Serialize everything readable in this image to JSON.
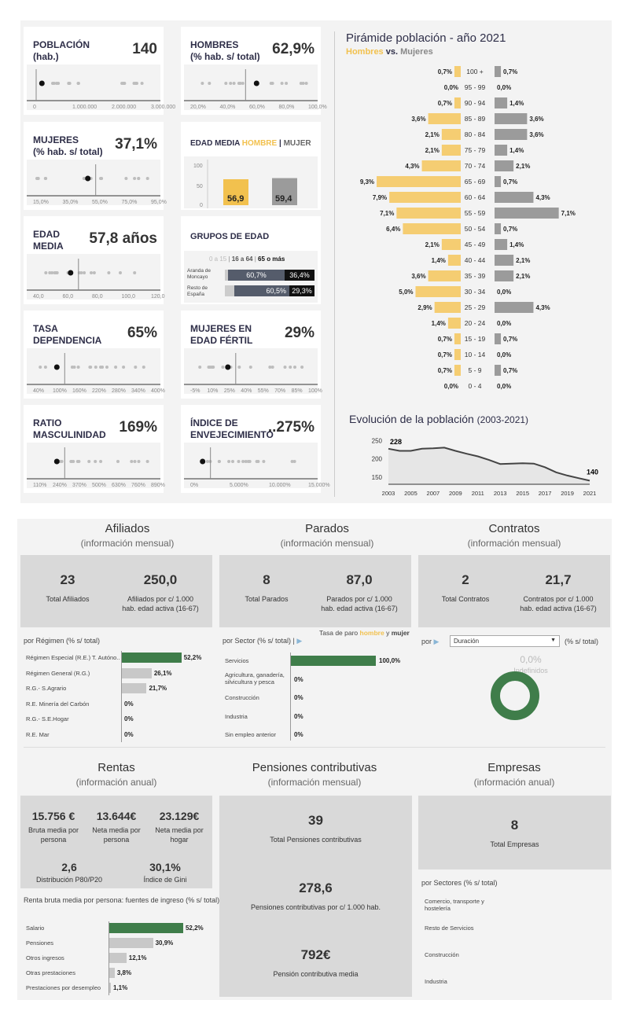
{
  "cards": [
    {
      "name": "card-poblacion",
      "title": "POBLACIÓN\n(hab.)",
      "value": "140",
      "ticks": [
        "0",
        "1.000.000",
        "2.000.000",
        "3.000.000"
      ]
    },
    {
      "name": "card-hombres",
      "title": "HOMBRES\n(% hab. s/ total)",
      "value": "62,9%",
      "ticks": [
        "20,0%",
        "40,0%",
        "60,0%",
        "80,0%",
        "100,0%"
      ]
    },
    {
      "name": "card-mujeres",
      "title": "MUJERES\n(% hab. s/ total)",
      "value": "37,1%",
      "ticks": [
        "15,0%",
        "35,0%",
        "55,0%",
        "75,0%",
        "95,0%"
      ]
    },
    {
      "name": "card-edad-media",
      "title": "EDAD\nMEDIA",
      "value": "57,8 años",
      "ticks": [
        "40,0",
        "60,0",
        "80,0",
        "100,0",
        "120,0"
      ]
    },
    {
      "name": "card-tasa-dependencia",
      "title": "TASA\nDEPENDENCIA",
      "value": "65%",
      "ticks": [
        "40%",
        "100%",
        "160%",
        "220%",
        "280%",
        "340%",
        "400%"
      ]
    },
    {
      "name": "card-mujeres-fertil",
      "title": "MUJERES EN\nEDAD FÉRTIL",
      "value": "29%",
      "ticks": [
        "-5%",
        "10%",
        "25%",
        "40%",
        "55%",
        "70%",
        "85%",
        "100%"
      ]
    },
    {
      "name": "card-ratio-masculinidad",
      "title": "RATIO\nMASCULINIDAD",
      "value": "169%",
      "ticks": [
        "110%",
        "240%",
        "370%",
        "500%",
        "630%",
        "760%",
        "890%"
      ]
    },
    {
      "name": "card-indice-envejecimiento",
      "title": "ÍNDICE DE\nENVEJECIMIENTO",
      "value": "..275%",
      "ticks": [
        "0%",
        "5.000%",
        "10.000%",
        "15.000%"
      ]
    }
  ],
  "edad_media_sexo": {
    "title": "EDAD MEDIA",
    "hombre": "HOMBRE",
    "sep": "|",
    "mujer": "MUJER",
    "axis": [
      "100",
      "50",
      "0"
    ],
    "hombre_val": "56,9",
    "mujer_val": "59,4",
    "hombre_num": 56.9,
    "mujer_num": 59.4
  },
  "grupos_edad": {
    "title": "GRUPOS DE EDAD",
    "leg1": "0 a 15",
    "leg2": "16 a 64",
    "leg3": "65",
    "leg3b": "o más",
    "row1": "Aranda de\nMoncayo",
    "row2": "Resto de\nEspaña",
    "r1a": "60,7%",
    "r1b": "36,4%",
    "r2a": "60,5%",
    "r2b": "29,3%"
  },
  "pyramid": {
    "title": "Pirámide población - año 2021",
    "hombres": "Hombres",
    "vs": "vs.",
    "mujeres": "Mujeres",
    "color_h": "#f5cd72",
    "color_m": "#9b9b9b",
    "rows": [
      {
        "age": "100 +",
        "h": 0.7,
        "m": 0.7,
        "hl": "0,7%",
        "ml": "0,7%"
      },
      {
        "age": "95 - 99",
        "h": 0,
        "m": 0,
        "hl": "0,0%",
        "ml": "0,0%"
      },
      {
        "age": "90 - 94",
        "h": 0.7,
        "m": 1.4,
        "hl": "0,7%",
        "ml": "1,4%"
      },
      {
        "age": "85 - 89",
        "h": 3.6,
        "m": 3.6,
        "hl": "3,6%",
        "ml": "3,6%"
      },
      {
        "age": "80 - 84",
        "h": 2.1,
        "m": 3.6,
        "hl": "2,1%",
        "ml": "3,6%"
      },
      {
        "age": "75 - 79",
        "h": 2.1,
        "m": 1.4,
        "hl": "2,1%",
        "ml": "1,4%"
      },
      {
        "age": "70 - 74",
        "h": 4.3,
        "m": 2.1,
        "hl": "4,3%",
        "ml": "2,1%"
      },
      {
        "age": "65 - 69",
        "h": 9.3,
        "m": 0.7,
        "hl": "9,3%",
        "ml": "0,7%"
      },
      {
        "age": "60 - 64",
        "h": 7.9,
        "m": 4.3,
        "hl": "7,9%",
        "ml": "4,3%"
      },
      {
        "age": "55 - 59",
        "h": 7.1,
        "m": 7.1,
        "hl": "7,1%",
        "ml": "7,1%"
      },
      {
        "age": "50 - 54",
        "h": 6.4,
        "m": 0.7,
        "hl": "6,4%",
        "ml": "0,7%"
      },
      {
        "age": "45 - 49",
        "h": 2.1,
        "m": 1.4,
        "hl": "2,1%",
        "ml": "1,4%"
      },
      {
        "age": "40 - 44",
        "h": 1.4,
        "m": 2.1,
        "hl": "1,4%",
        "ml": "2,1%"
      },
      {
        "age": "35 - 39",
        "h": 3.6,
        "m": 2.1,
        "hl": "3,6%",
        "ml": "2,1%"
      },
      {
        "age": "30 - 34",
        "h": 5.0,
        "m": 0,
        "hl": "5,0%",
        "ml": "0,0%"
      },
      {
        "age": "25 - 29",
        "h": 2.9,
        "m": 4.3,
        "hl": "2,9%",
        "ml": "4,3%"
      },
      {
        "age": "20 - 24",
        "h": 1.4,
        "m": 0,
        "hl": "1,4%",
        "ml": "0,0%"
      },
      {
        "age": "15 - 19",
        "h": 0.7,
        "m": 0.7,
        "hl": "0,7%",
        "ml": "0,7%"
      },
      {
        "age": "10 - 14",
        "h": 0.7,
        "m": 0,
        "hl": "0,7%",
        "ml": "0,0%"
      },
      {
        "age": "5 - 9",
        "h": 0.7,
        "m": 0.7,
        "hl": "0,7%",
        "ml": "0,7%"
      },
      {
        "age": "0 - 4",
        "h": 0,
        "m": 0,
        "hl": "0,0%",
        "ml": "0,0%"
      }
    ]
  },
  "evolution": {
    "title": "Evolución de la población",
    "range": "(2003-2021)",
    "years": [
      "2003",
      "2005",
      "2007",
      "2009",
      "2011",
      "2013",
      "2015",
      "2017",
      "2019",
      "2021"
    ],
    "yticks": [
      "250",
      "200",
      "150"
    ],
    "first_label": "228",
    "last_label": "140"
  },
  "chart_data": {
    "type": "line",
    "x": [
      2003,
      2004,
      2005,
      2006,
      2007,
      2008,
      2009,
      2010,
      2011,
      2012,
      2013,
      2014,
      2015,
      2016,
      2017,
      2018,
      2019,
      2020,
      2021
    ],
    "values": [
      228,
      222,
      222,
      228,
      229,
      231,
      222,
      214,
      207,
      197,
      186,
      187,
      188,
      187,
      177,
      163,
      154,
      147,
      140
    ],
    "ylim": [
      130,
      260
    ]
  },
  "afiliados": {
    "title": "Afiliados",
    "sub": "(información mensual)",
    "n1": "23",
    "l1": "Total Afiliados",
    "n2": "250,0",
    "l2": "Afiliados por c/ 1.000\nhab. edad activa (16-67)",
    "breakdown": "por Régimen (% s/ total)",
    "rows": [
      {
        "label": "Régimen Especial (R.E.) T. Autóno..",
        "v": 52.2,
        "t": "52,2%"
      },
      {
        "label": "Régimen General (R.G.)",
        "v": 26.1,
        "t": "26,1%"
      },
      {
        "label": "R.G.- S.Agrario",
        "v": 21.7,
        "t": "21,7%"
      },
      {
        "label": "R.E. Minería del Carbón",
        "v": 0,
        "t": "0%"
      },
      {
        "label": "R.G.- S.E.Hogar",
        "v": 0,
        "t": "0%"
      },
      {
        "label": "R.E. Mar",
        "v": 0,
        "t": "0%"
      }
    ]
  },
  "parados": {
    "title": "Parados",
    "sub": "(información mensual)",
    "n1": "8",
    "l1": "Total Parados",
    "n2": "87,0",
    "l2": "Parados por c/ 1.000\nhab. edad activa (16-67)",
    "breakdown": "por Sector (% s/ total)",
    "tasa": "Tasa de paro",
    "hombre": "hombre",
    "y": "y",
    "mujer": "mujer",
    "rows": [
      {
        "label": "Servicios",
        "v": 100,
        "t": "100,0%"
      },
      {
        "label": "Agricultura, ganadería,\nsilvicultura y pesca",
        "v": 0,
        "t": "0%"
      },
      {
        "label": "Construcción",
        "v": 0,
        "t": "0%"
      },
      {
        "label": "Industria",
        "v": 0,
        "t": "0%"
      },
      {
        "label": "Sin empleo anterior",
        "v": 0,
        "t": "0%"
      }
    ]
  },
  "contratos": {
    "title": "Contratos",
    "sub": "(información mensual)",
    "n1": "2",
    "l1": "Total Contratos",
    "n2": "21,7",
    "l2": "Contratos por c/ 1.000\nhab. edad activa (16-67)",
    "por": "por",
    "select": "Duración",
    "unit": "(% s/ total)",
    "donut_pct": "0,0%",
    "donut_label": "Indefinidos"
  },
  "rentas": {
    "title": "Rentas",
    "sub": "(información anual)",
    "k1": "15.756 €",
    "k1l": "Bruta media por\npersona",
    "k2": "13.644€",
    "k2l": "Neta media por\npersona",
    "k3": "23.129€",
    "k3l": "Neta media por\nhogar",
    "k4": "2,6",
    "k4l": "Distribución P80/P20",
    "k5": "30,1%",
    "k5l": "Índice de Gini",
    "breakdown": "Renta bruta media por persona: fuentes de ingreso (% s/ total)",
    "rows": [
      {
        "label": "Salario",
        "v": 52.2,
        "t": "52,2%"
      },
      {
        "label": "Pensiones",
        "v": 30.9,
        "t": "30,9%"
      },
      {
        "label": "Otros ingresos",
        "v": 12.1,
        "t": "12,1%"
      },
      {
        "label": "Otras prestaciones",
        "v": 3.8,
        "t": "3,8%"
      },
      {
        "label": "Prestaciones por desempleo",
        "v": 1.1,
        "t": "1,1%"
      }
    ]
  },
  "pensiones": {
    "title": "Pensiones contributivas",
    "sub": "(información mensual)",
    "n1": "39",
    "l1": "Total Pensiones contributivas",
    "n2": "278,6",
    "l2": "Pensiones contributivas por c/ 1.000 hab.",
    "n3": "792€",
    "l3": "Pensión contributiva media"
  },
  "empresas": {
    "title": "Empresas",
    "sub": "(información anual)",
    "n1": "8",
    "l1": "Total Empresas",
    "breakdown": "por Sectores (% s/ total)",
    "rows": [
      "Comercio, transporte y\nhostelería",
      "Resto de Servicios",
      "Construcción",
      "Industria"
    ]
  },
  "colors": {
    "green": "#3f7d4a",
    "gray": "#c8c8c8",
    "yellow": "#f2c14e",
    "dark": "#4a5060"
  }
}
